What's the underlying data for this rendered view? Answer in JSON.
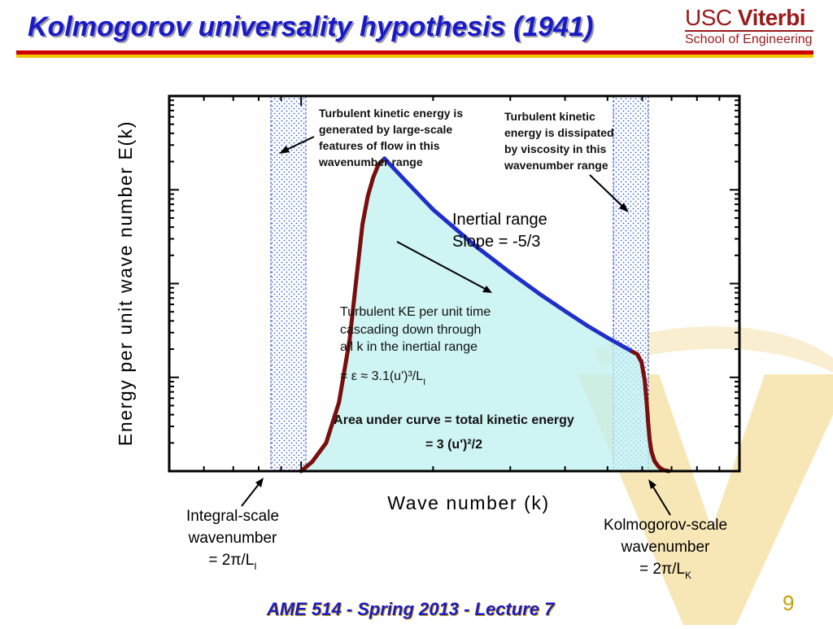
{
  "slide": {
    "title": "Kolmogorov universality hypothesis (1941)",
    "logo_usc": "USC",
    "logo_viterbi": "Viterbi",
    "logo_school": "School of Engineering",
    "footer": "AME 514 - Spring 2013 - Lecture 7",
    "page_number": "9"
  },
  "colors": {
    "title": "#1a1ac8",
    "rule_red": "#cc0000",
    "rule_gold": "#f2c300",
    "curve": "#7a0e0e",
    "inertial_line": "#1f2fc8",
    "fill": "#bff0f0",
    "watermark": "#f7e7b6"
  },
  "chart_data": {
    "type": "line",
    "xlabel": "Wave number (k)",
    "ylabel": "Energy per unit wave number E(k)",
    "x_scale": "log",
    "y_scale": "log",
    "tick_labels": false,
    "grid": false,
    "inertial_slope": -1.6667,
    "series": [
      {
        "role": "spectrum",
        "x": [
          1.0,
          1.06,
          1.14,
          1.22,
          1.29,
          1.34,
          1.38,
          1.42,
          1.46,
          1.5,
          1.55
        ],
        "y": [
          0.0,
          0.3,
          0.9,
          2.2,
          4.2,
          6.3,
          7.9,
          8.8,
          9.4,
          9.8,
          10.0
        ]
      },
      {
        "role": "inertial",
        "x": [
          1.55,
          1.7,
          2.0,
          2.5,
          3.0,
          3.5,
          4.0,
          4.5,
          5.0,
          5.7
        ],
        "y": [
          10.0,
          9.4,
          8.37,
          7.2,
          6.35,
          5.67,
          5.12,
          4.65,
          4.27,
          3.82
        ]
      },
      {
        "role": "dissipation",
        "x": [
          5.7,
          5.85,
          5.98,
          6.08,
          6.14,
          6.19,
          6.24,
          6.3,
          6.4,
          6.55,
          6.72,
          6.9
        ],
        "y": [
          3.82,
          3.74,
          3.48,
          2.9,
          2.2,
          1.55,
          1.0,
          0.62,
          0.32,
          0.13,
          0.03,
          0.0
        ]
      }
    ],
    "annotations": {
      "production": [
        "Turbulent kinetic energy is",
        "generated by large-scale",
        "features of flow in this",
        "wavenumber range"
      ],
      "dissipation": [
        "Turbulent kinetic",
        "energy is dissipated",
        "by viscosity in this",
        "wavenumber range"
      ],
      "inertial": [
        "Inertial range",
        "Slope = -5/3"
      ],
      "cascade": [
        "Turbulent KE per unit time",
        "cascading down through",
        "all k in the inertial range"
      ],
      "epsilon": "= ε ≈ 3.1(u')³/L",
      "epsilon_sub": "I",
      "area": [
        "Area under curve = total kinetic energy",
        "= 3 (u')²/2"
      ],
      "integral_scale": [
        "Integral-scale",
        "wavenumber",
        "= 2π/L"
      ],
      "integral_sub": "I",
      "kolmogorov_scale": [
        "Kolmogorov-scale",
        "wavenumber",
        "= 2π/L"
      ],
      "kolmogorov_sub": "K"
    }
  }
}
